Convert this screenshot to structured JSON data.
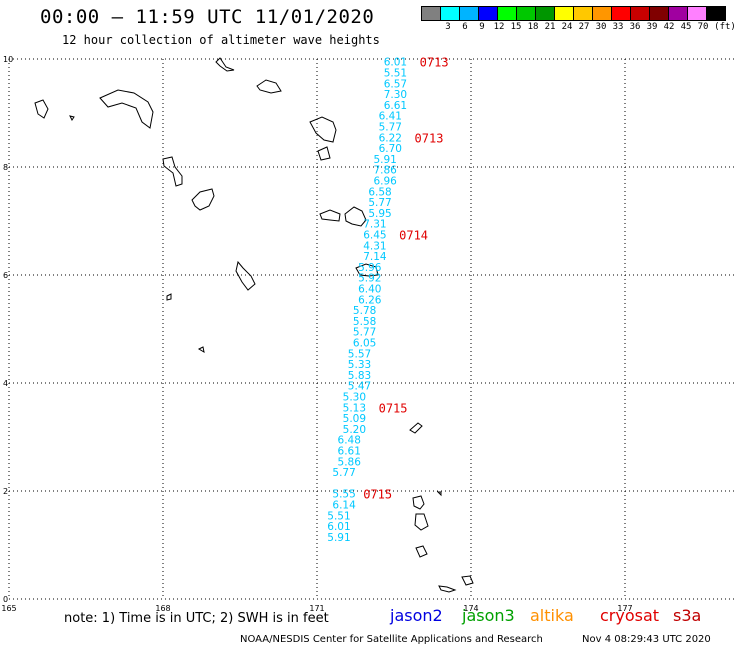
{
  "header": {
    "title": "00:00 – 11:59 UTC 11/01/2020",
    "subtitle": "12 hour collection of altimeter wave heights"
  },
  "colorbar": {
    "labels": [
      "3",
      "6",
      "9",
      "12",
      "15",
      "18",
      "21",
      "24",
      "27",
      "30",
      "33",
      "36",
      "39",
      "42",
      "45",
      "70"
    ],
    "unit": "(ft)",
    "colors": [
      "#808080",
      "#00ffff",
      "#00b4ff",
      "#0000ff",
      "#00ff00",
      "#00c800",
      "#009600",
      "#ffff00",
      "#ffc800",
      "#ff9600",
      "#ff0000",
      "#c80000",
      "#800000",
      "#a000a0",
      "#ff80ff",
      "#000000"
    ]
  },
  "map": {
    "lon_labels": [
      "165",
      "168",
      "171",
      "174",
      "177"
    ],
    "lat_labels": [
      "10",
      "8",
      "6",
      "4",
      "2",
      "0"
    ],
    "lon_range": [
      165,
      178.8
    ],
    "lat_range": [
      0,
      10
    ],
    "grid": true,
    "track_color": "#00c8ff",
    "time_color": "#e00000",
    "track": [
      {
        "lon": 172.3,
        "lat": 9.95,
        "swh": "6.01"
      },
      {
        "lon": 172.3,
        "lat": 9.75,
        "swh": "5.51"
      },
      {
        "lon": 172.3,
        "lat": 9.55,
        "swh": "6.57"
      },
      {
        "lon": 172.3,
        "lat": 9.35,
        "swh": "7.30"
      },
      {
        "lon": 172.3,
        "lat": 9.15,
        "swh": "6.61"
      },
      {
        "lon": 172.2,
        "lat": 8.95,
        "swh": "6.41"
      },
      {
        "lon": 172.2,
        "lat": 8.75,
        "swh": "5.77"
      },
      {
        "lon": 172.2,
        "lat": 8.55,
        "swh": "6.22"
      },
      {
        "lon": 172.2,
        "lat": 8.35,
        "swh": "6.70"
      },
      {
        "lon": 172.1,
        "lat": 8.15,
        "swh": "5.91"
      },
      {
        "lon": 172.1,
        "lat": 7.95,
        "swh": "7.86"
      },
      {
        "lon": 172.1,
        "lat": 7.75,
        "swh": "6.96"
      },
      {
        "lon": 172.0,
        "lat": 7.55,
        "swh": "6.58"
      },
      {
        "lon": 172.0,
        "lat": 7.35,
        "swh": "5.77"
      },
      {
        "lon": 172.0,
        "lat": 7.15,
        "swh": "5.95"
      },
      {
        "lon": 171.9,
        "lat": 6.95,
        "swh": "7.31"
      },
      {
        "lon": 171.9,
        "lat": 6.75,
        "swh": "6.45"
      },
      {
        "lon": 171.9,
        "lat": 6.55,
        "swh": "4.31"
      },
      {
        "lon": 171.9,
        "lat": 6.35,
        "swh": "7.14"
      },
      {
        "lon": 171.8,
        "lat": 6.15,
        "swh": "5.96"
      },
      {
        "lon": 171.8,
        "lat": 5.95,
        "swh": "5.92"
      },
      {
        "lon": 171.8,
        "lat": 5.75,
        "swh": "6.40"
      },
      {
        "lon": 171.8,
        "lat": 5.55,
        "swh": "6.26"
      },
      {
        "lon": 171.7,
        "lat": 5.35,
        "swh": "5.78"
      },
      {
        "lon": 171.7,
        "lat": 5.15,
        "swh": "5.58"
      },
      {
        "lon": 171.7,
        "lat": 4.95,
        "swh": "5.77"
      },
      {
        "lon": 171.7,
        "lat": 4.75,
        "swh": "6.05"
      },
      {
        "lon": 171.6,
        "lat": 4.55,
        "swh": "5.57"
      },
      {
        "lon": 171.6,
        "lat": 4.35,
        "swh": "5.33"
      },
      {
        "lon": 171.6,
        "lat": 4.15,
        "swh": "5.83"
      },
      {
        "lon": 171.6,
        "lat": 3.95,
        "swh": "5.47"
      },
      {
        "lon": 171.5,
        "lat": 3.75,
        "swh": "5.30"
      },
      {
        "lon": 171.5,
        "lat": 3.55,
        "swh": "5.13"
      },
      {
        "lon": 171.5,
        "lat": 3.35,
        "swh": "5.09"
      },
      {
        "lon": 171.5,
        "lat": 3.15,
        "swh": "5.20"
      },
      {
        "lon": 171.4,
        "lat": 2.95,
        "swh": "6.48"
      },
      {
        "lon": 171.4,
        "lat": 2.75,
        "swh": "6.61"
      },
      {
        "lon": 171.4,
        "lat": 2.55,
        "swh": "5.86"
      },
      {
        "lon": 171.3,
        "lat": 2.35,
        "swh": "5.77"
      },
      {
        "lon": 171.3,
        "lat": 1.95,
        "swh": "5.55"
      },
      {
        "lon": 171.3,
        "lat": 1.75,
        "swh": "6.14"
      },
      {
        "lon": 171.2,
        "lat": 1.55,
        "swh": "5.51"
      },
      {
        "lon": 171.2,
        "lat": 1.35,
        "swh": "6.01"
      },
      {
        "lon": 171.2,
        "lat": 1.15,
        "swh": "5.91"
      }
    ],
    "times": [
      {
        "lon": 173.0,
        "lat": 9.95,
        "text": "0713"
      },
      {
        "lon": 172.9,
        "lat": 8.55,
        "text": "0713"
      },
      {
        "lon": 172.6,
        "lat": 6.75,
        "text": "0714"
      },
      {
        "lon": 172.2,
        "lat": 3.55,
        "text": "0715"
      },
      {
        "lon": 171.9,
        "lat": 1.95,
        "text": "0715"
      }
    ]
  },
  "footer": {
    "note": "note: 1) Time is in UTC; 2) SWH is in feet",
    "satellites": [
      {
        "name": "jason2",
        "color": "#0000e0"
      },
      {
        "name": "jason3",
        "color": "#00a000"
      },
      {
        "name": "altika",
        "color": "#ff9000"
      },
      {
        "name": "cryosat",
        "color": "#e00000"
      },
      {
        "name": "s3a",
        "color": "#c00000"
      }
    ],
    "credit": "NOAA/NESDIS Center for Satellite Applications and Research",
    "timestamp": "Nov  4 08:29:43 UTC 2020"
  }
}
